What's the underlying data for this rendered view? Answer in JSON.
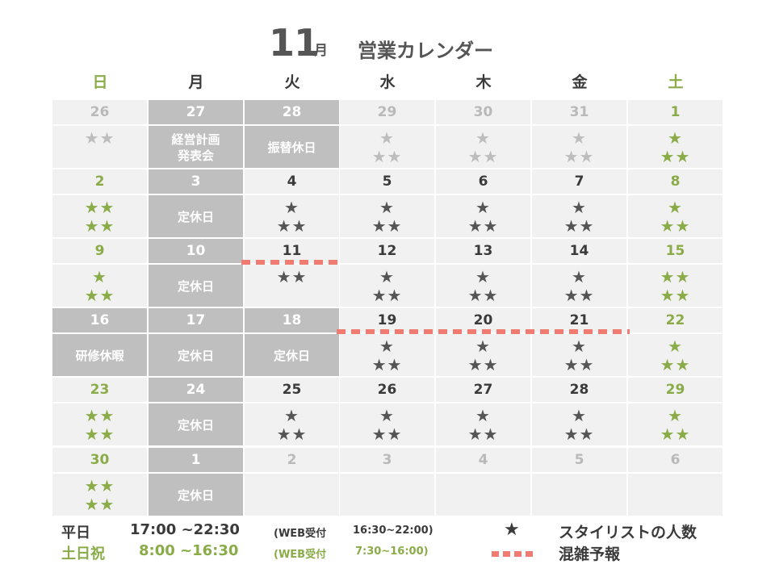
{
  "title": {
    "month": "11",
    "unit": "月",
    "name": "営業カレンダー"
  },
  "weekdays": [
    "日",
    "月",
    "火",
    "水",
    "木",
    "金",
    "土"
  ],
  "cells": [
    {
      "date": "26",
      "stars": [
        "★★"
      ],
      "style": "muted"
    },
    {
      "date": "27",
      "note": "経営計画\n発表会",
      "style": "gray"
    },
    {
      "date": "28",
      "note": "振替休日",
      "style": "gray"
    },
    {
      "date": "29",
      "stars": [
        "★",
        "★★"
      ],
      "style": "muted"
    },
    {
      "date": "30",
      "stars": [
        "★",
        "★★"
      ],
      "style": "muted"
    },
    {
      "date": "31",
      "stars": [
        "★",
        "★★"
      ],
      "style": "muted"
    },
    {
      "date": "1",
      "stars": [
        "★",
        "★★"
      ],
      "style": "green"
    },
    {
      "date": "2",
      "stars": [
        "★★",
        "★★"
      ],
      "style": "green"
    },
    {
      "date": "3",
      "note": "定休日",
      "style": "gray"
    },
    {
      "date": "4",
      "stars": [
        "★",
        "★★"
      ],
      "style": "normal"
    },
    {
      "date": "5",
      "stars": [
        "★",
        "★★"
      ],
      "style": "normal"
    },
    {
      "date": "6",
      "stars": [
        "★",
        "★★"
      ],
      "style": "normal"
    },
    {
      "date": "7",
      "stars": [
        "★",
        "★★"
      ],
      "style": "normal"
    },
    {
      "date": "8",
      "stars": [
        "★",
        "★★"
      ],
      "style": "green"
    },
    {
      "date": "9",
      "stars": [
        "★",
        "★★"
      ],
      "style": "green"
    },
    {
      "date": "10",
      "note": "定休日",
      "style": "gray"
    },
    {
      "date": "11",
      "stars": [
        "★★"
      ],
      "style": "normal"
    },
    {
      "date": "12",
      "stars": [
        "★",
        "★★"
      ],
      "style": "normal"
    },
    {
      "date": "13",
      "stars": [
        "★",
        "★★"
      ],
      "style": "normal"
    },
    {
      "date": "14",
      "stars": [
        "★",
        "★★"
      ],
      "style": "normal"
    },
    {
      "date": "15",
      "stars": [
        "★★",
        "★★"
      ],
      "style": "green"
    },
    {
      "date": "16",
      "note": "研修休暇",
      "style": "gray"
    },
    {
      "date": "17",
      "note": "定休日",
      "style": "gray"
    },
    {
      "date": "18",
      "note": "定休日",
      "style": "gray"
    },
    {
      "date": "19",
      "stars": [
        "★",
        "★★"
      ],
      "style": "normal"
    },
    {
      "date": "20",
      "stars": [
        "★",
        "★★"
      ],
      "style": "normal"
    },
    {
      "date": "21",
      "stars": [
        "★",
        "★★"
      ],
      "style": "normal"
    },
    {
      "date": "22",
      "stars": [
        "★",
        "★★"
      ],
      "style": "green"
    },
    {
      "date": "23",
      "stars": [
        "★★",
        "★★"
      ],
      "style": "green"
    },
    {
      "date": "24",
      "note": "定休日",
      "style": "gray"
    },
    {
      "date": "25",
      "stars": [
        "★",
        "★★"
      ],
      "style": "normal"
    },
    {
      "date": "26",
      "stars": [
        "★",
        "★★"
      ],
      "style": "normal"
    },
    {
      "date": "27",
      "stars": [
        "★",
        "★★"
      ],
      "style": "normal"
    },
    {
      "date": "28",
      "stars": [
        "★",
        "★★"
      ],
      "style": "normal"
    },
    {
      "date": "29",
      "stars": [
        "★",
        "★★"
      ],
      "style": "green"
    },
    {
      "date": "30",
      "stars": [
        "★★",
        "★★"
      ],
      "style": "green"
    },
    {
      "date": "1",
      "note": "定休日",
      "style": "gray"
    },
    {
      "date": "2",
      "style": "muted"
    },
    {
      "date": "3",
      "style": "muted"
    },
    {
      "date": "4",
      "style": "muted"
    },
    {
      "date": "5",
      "style": "muted"
    },
    {
      "date": "6",
      "style": "muted"
    }
  ],
  "crowd_markers": [
    {
      "week": 2,
      "day_start": 2,
      "day_end": 2
    },
    {
      "week": 3,
      "day_start": 3,
      "day_end": 5
    }
  ],
  "footer": {
    "weekday": {
      "label": "平日",
      "hours": "17:00 ~22:30",
      "web": "(WEB受付",
      "web_hours": "16:30~22:00)"
    },
    "weekend": {
      "label": "土日祝",
      "hours": "8:00 ~16:30",
      "web": "(WEB受付",
      "web_hours": "7:30~16:00)"
    }
  },
  "legend": {
    "star_icon": "★",
    "star_label": "スタイリストの人数",
    "crowd_label": "混雑予報"
  },
  "colors": {
    "green": "#8aac48",
    "gray": "#bfbfbf",
    "cell": "#f1f1f1",
    "crowd": "#ef7b72"
  }
}
